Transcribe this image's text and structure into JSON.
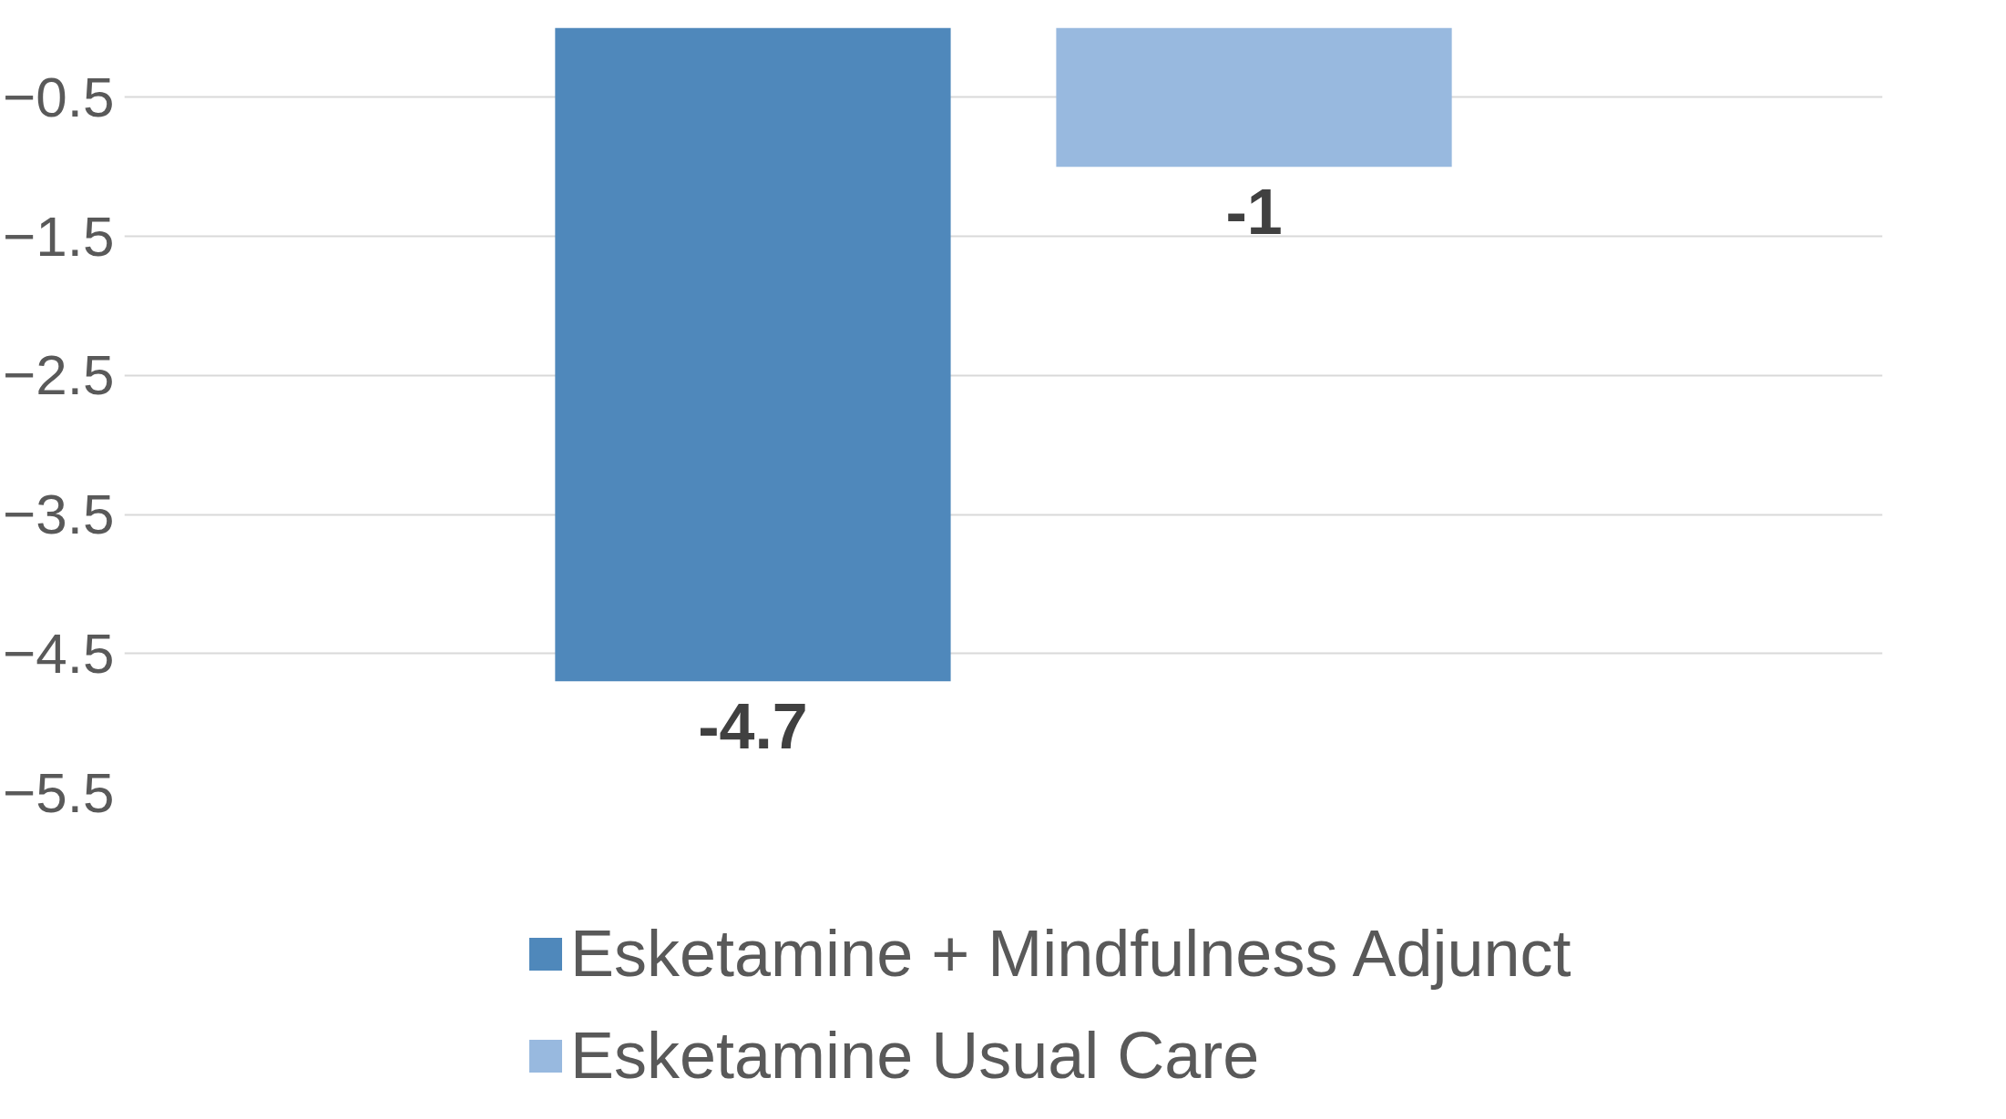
{
  "chart_data": {
    "type": "bar",
    "categories": [
      null
    ],
    "series": [
      {
        "name": "Esketamine + Mindfulness Adjunct",
        "color": "#4f88bb",
        "values": [
          -4.7
        ]
      },
      {
        "name": "Esketamine Usual Care",
        "color": "#98b9df",
        "values": [
          -1
        ]
      }
    ],
    "ylim": [
      -5.5,
      0
    ],
    "yticks": [
      -0.5,
      -1.5,
      -2.5,
      -3.5,
      -4.5,
      -5.5
    ],
    "grid": "y",
    "legend": "bottom",
    "data_labels": true,
    "tick_labels": "y"
  }
}
